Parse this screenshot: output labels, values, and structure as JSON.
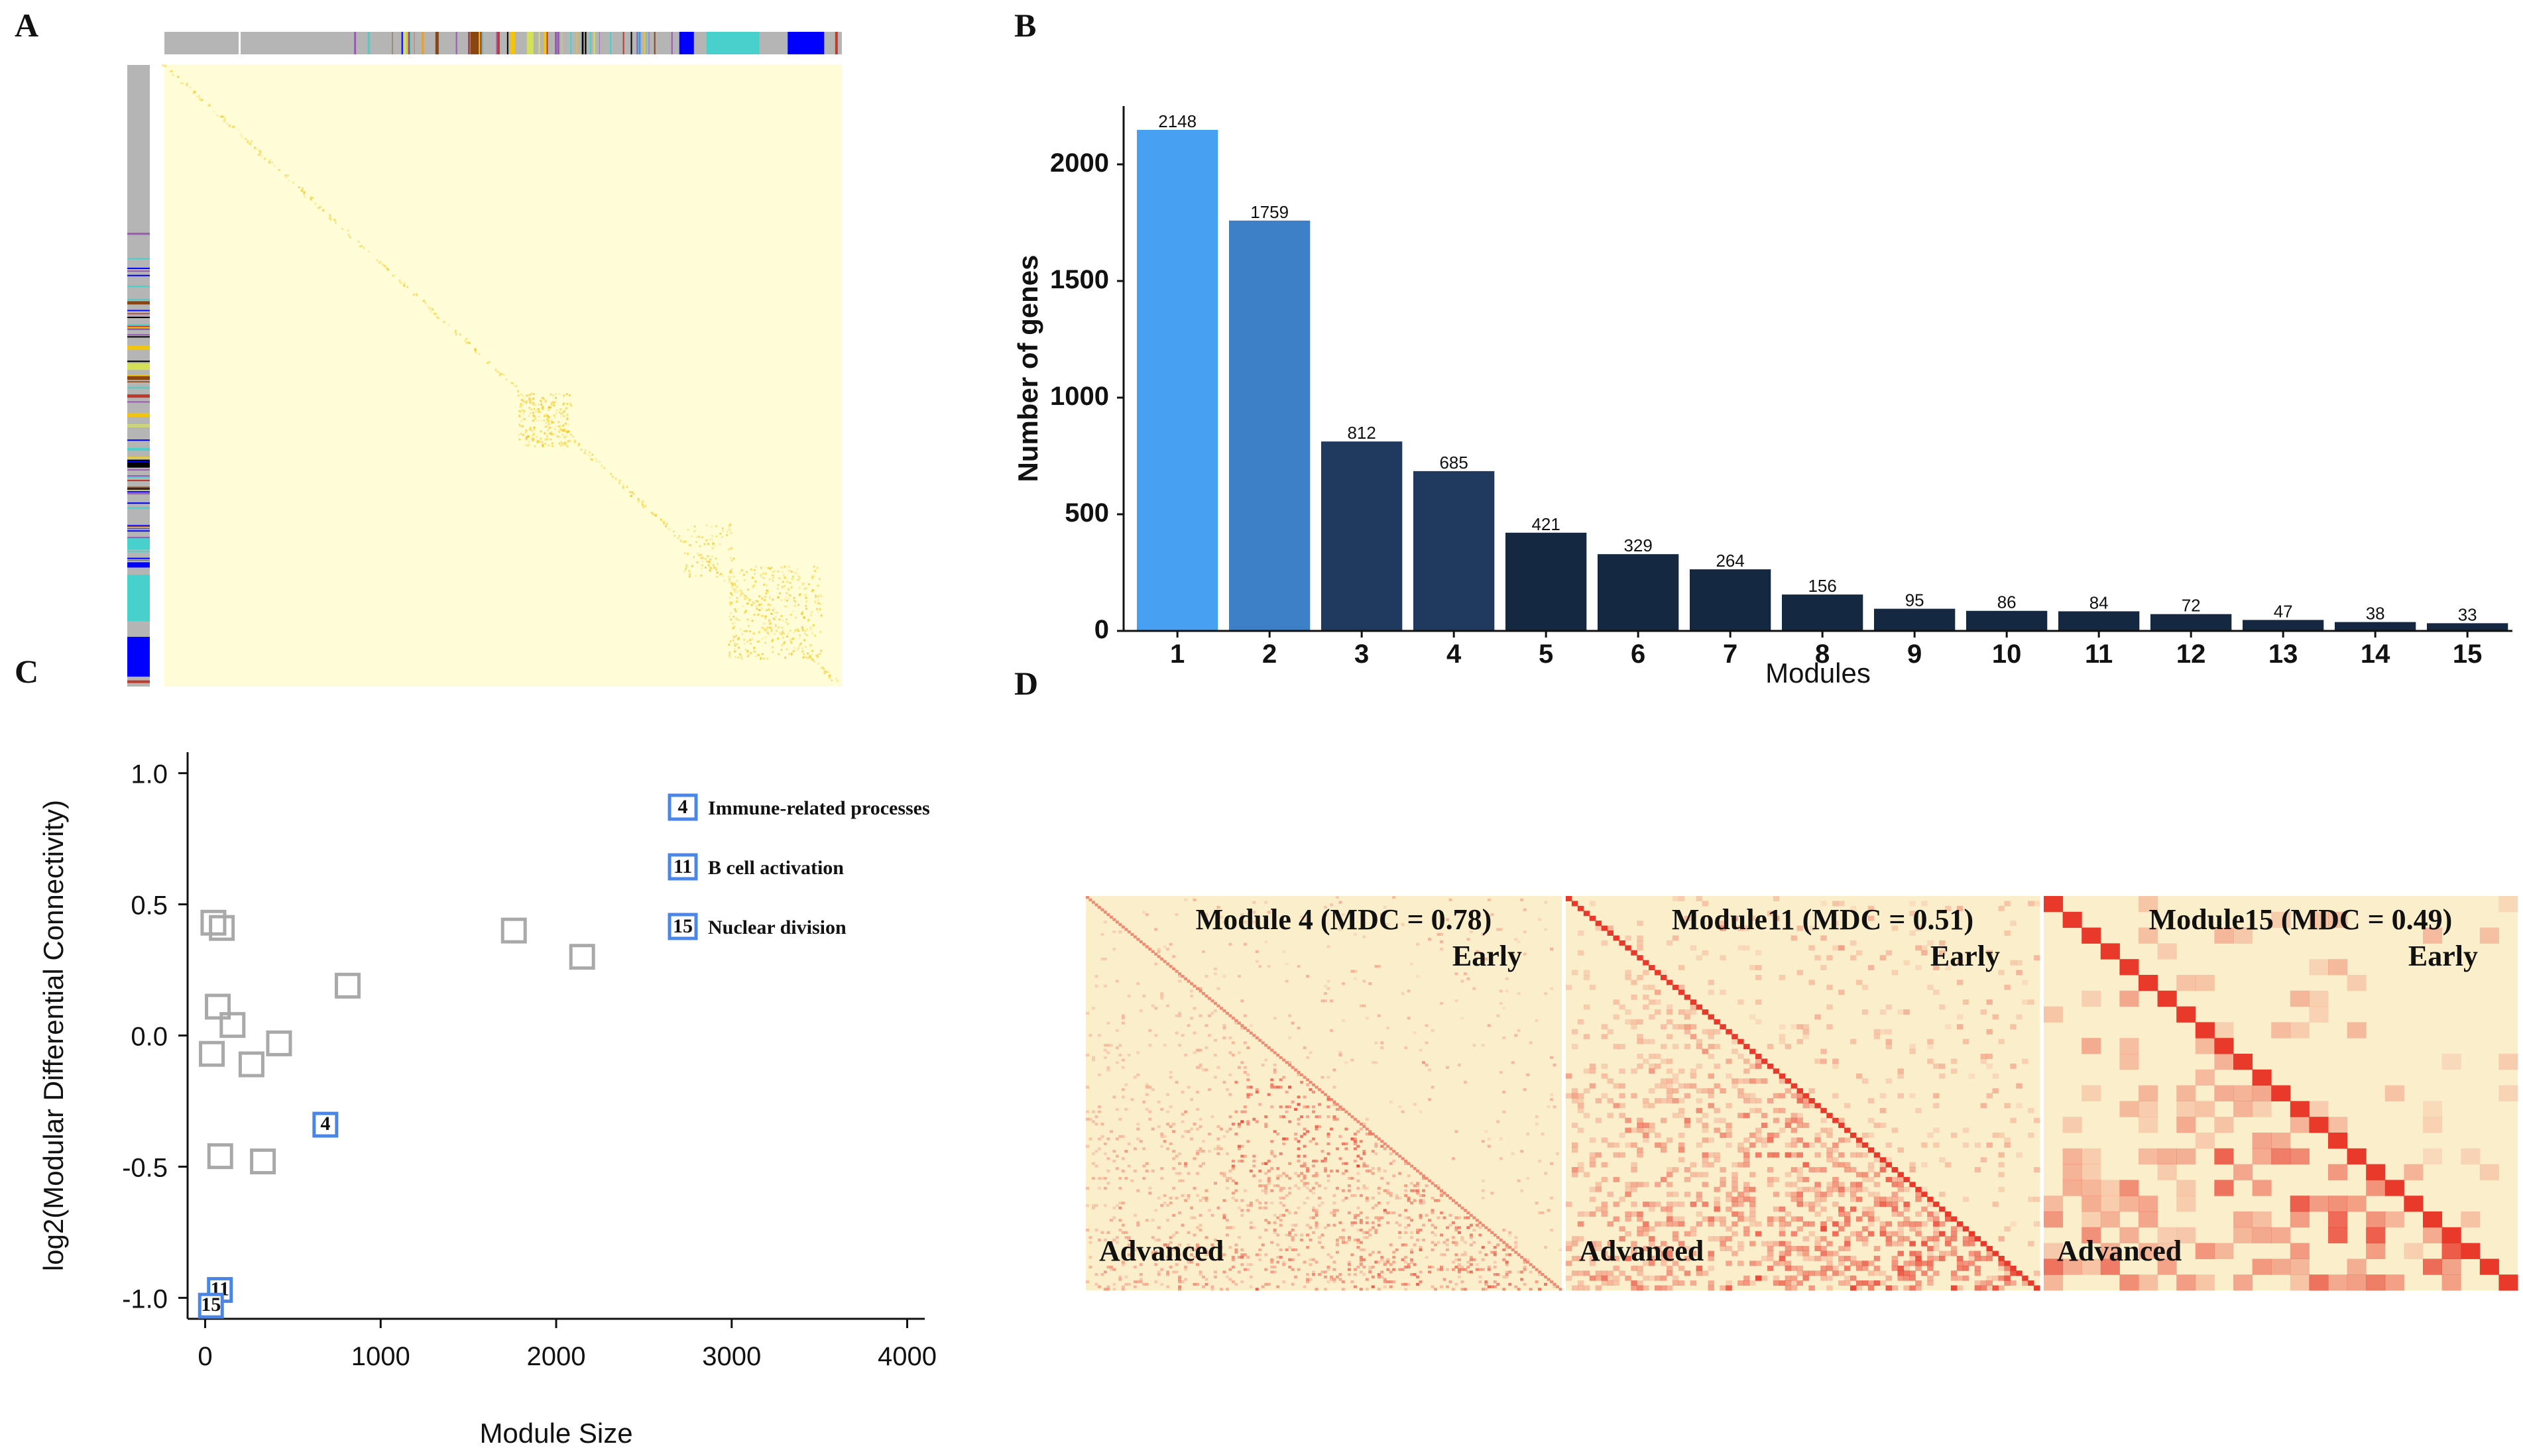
{
  "panel_labels": [
    "A",
    "B",
    "C",
    "D"
  ],
  "colors": {
    "heatmap_bg": "#fffdd8",
    "heat_hot": "#f0c000",
    "bar_1": "#47a0f2",
    "bar_2": "#3d80c8",
    "bar_dark": "#1f3a5e",
    "bar_darker": "#152841",
    "grey_marker": "#a9a9a9",
    "blue_marker": "#4a86e8",
    "d_bg": "#fbeecb",
    "d_red": "#e8392a"
  },
  "chart_data": [
    {
      "id": "A",
      "type": "heatmap",
      "title": "",
      "note": "Gene co-expression (TOM) heatmap with module color bars",
      "module_color_bar": [
        "#b5b5b5",
        "#b5b5b5",
        "#b5b5b5",
        "#9b59b6",
        "#b5b5b5",
        "#c0392b",
        "#8b4513",
        "#f1c40f",
        "#d4e157",
        "#b5b5b5",
        "#000000",
        "#b5b5b5",
        "#9b59b6",
        "#0000ff",
        "#48d1cc",
        "#48d1cc",
        "#0000ff"
      ]
    },
    {
      "id": "B",
      "type": "bar",
      "title": "",
      "xlabel": "Modules",
      "ylabel": "Number of genes",
      "categories": [
        "1",
        "2",
        "3",
        "4",
        "5",
        "6",
        "7",
        "8",
        "9",
        "10",
        "11",
        "12",
        "13",
        "14",
        "15"
      ],
      "values": [
        2148,
        1759,
        812,
        685,
        421,
        329,
        264,
        156,
        95,
        86,
        84,
        72,
        47,
        38,
        33
      ],
      "ylim": [
        0,
        2250
      ],
      "yticks": [
        0,
        500,
        1000,
        1500,
        2000
      ]
    },
    {
      "id": "C",
      "type": "scatter",
      "title": "",
      "xlabel": "Module Size",
      "ylabel": "log2(Modular Differential Connectivity)",
      "xlim": [
        -100,
        4100
      ],
      "ylim": [
        -1.08,
        1.08
      ],
      "xticks": [
        0,
        1000,
        2000,
        3000,
        4000
      ],
      "yticks": [
        1.0,
        0.5,
        0.0,
        -0.5,
        -1.0
      ],
      "ytick_labels": [
        "1.0",
        "0.5",
        "0.0",
        "-0.5",
        "-1.0"
      ],
      "points": [
        {
          "x": 2148,
          "y": 0.3,
          "label": ""
        },
        {
          "x": 1759,
          "y": 0.4,
          "label": ""
        },
        {
          "x": 812,
          "y": 0.19,
          "label": ""
        },
        {
          "x": 685,
          "y": -0.34,
          "label": "4",
          "highlight": true
        },
        {
          "x": 421,
          "y": -0.03,
          "label": ""
        },
        {
          "x": 329,
          "y": -0.48,
          "label": ""
        },
        {
          "x": 264,
          "y": -0.11,
          "label": ""
        },
        {
          "x": 156,
          "y": 0.04,
          "label": ""
        },
        {
          "x": 95,
          "y": 0.41,
          "label": ""
        },
        {
          "x": 86,
          "y": -0.46,
          "label": ""
        },
        {
          "x": 84,
          "y": -0.97,
          "label": "11",
          "highlight": true
        },
        {
          "x": 72,
          "y": 0.11,
          "label": ""
        },
        {
          "x": 47,
          "y": 0.43,
          "label": ""
        },
        {
          "x": 38,
          "y": -0.07,
          "label": ""
        },
        {
          "x": 33,
          "y": -1.03,
          "label": "15",
          "highlight": true
        }
      ],
      "legend": [
        {
          "key": "4",
          "text": "Immune-related processes"
        },
        {
          "key": "11",
          "text": "B cell activation"
        },
        {
          "key": "15",
          "text": "Nuclear  division"
        }
      ]
    },
    {
      "id": "D",
      "type": "heatmap",
      "title": "",
      "panels": [
        {
          "title": "Module 4 (MDC = 0.78)",
          "upper": "Early",
          "lower": "Advanced",
          "module": 4
        },
        {
          "title": "Module11 (MDC = 0.51)",
          "upper": "Early",
          "lower": "Advanced",
          "module": 11
        },
        {
          "title": "Module15 (MDC = 0.49)",
          "upper": "Early",
          "lower": "Advanced",
          "module": 15
        }
      ]
    }
  ]
}
